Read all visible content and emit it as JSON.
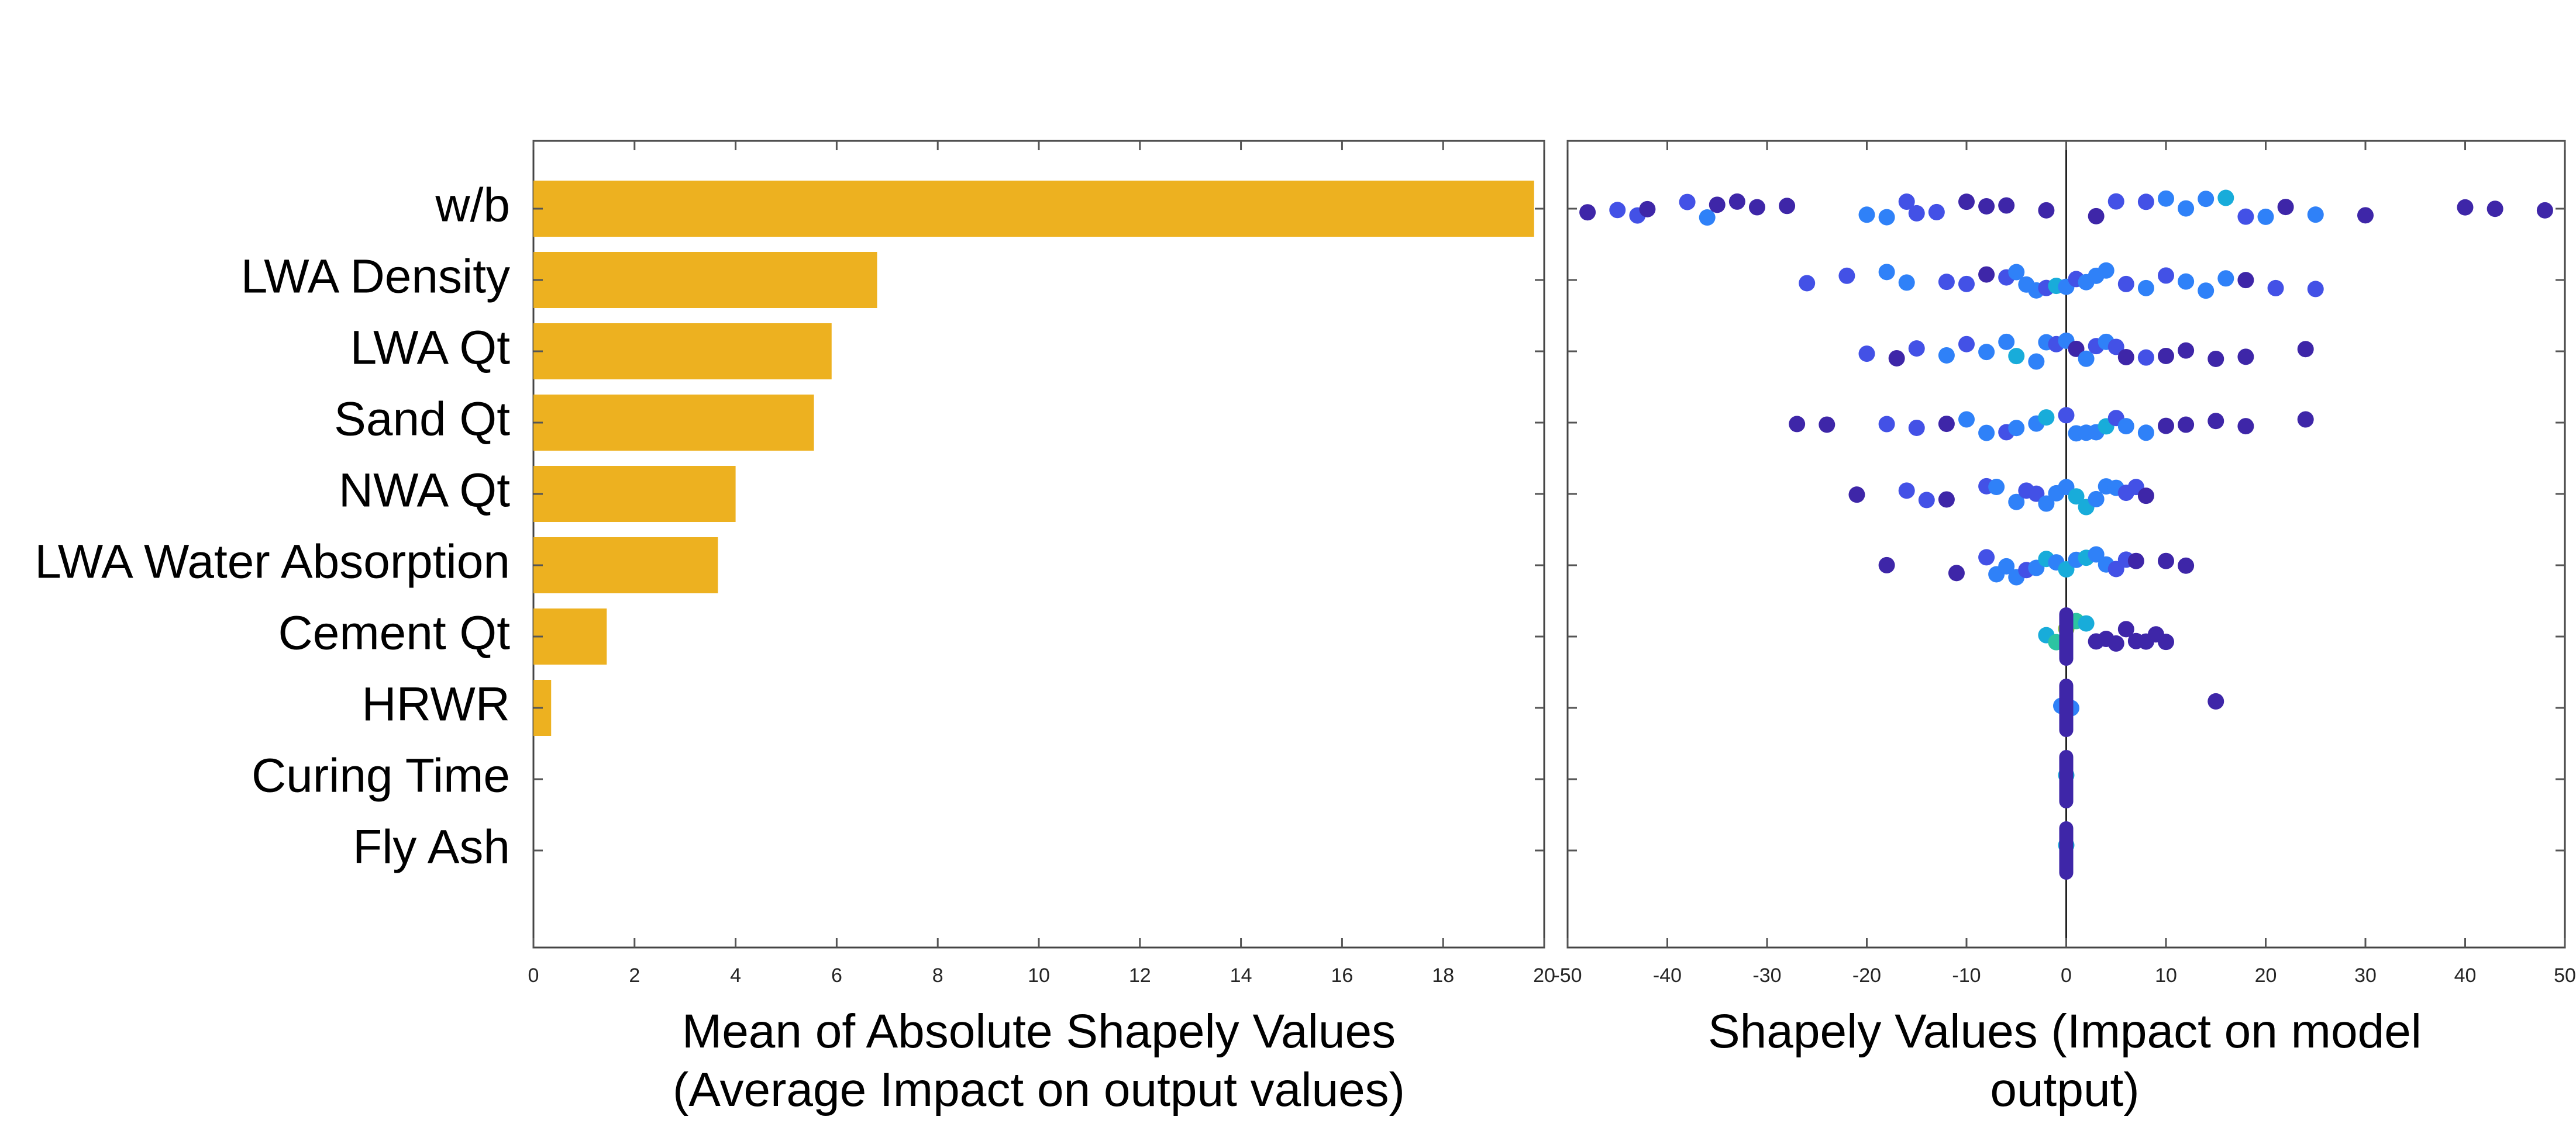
{
  "chart_data": [
    {
      "type": "bar",
      "orientation": "horizontal",
      "categories": [
        "w/b",
        "LWA Density",
        "LWA Qt",
        "Sand Qt",
        "NWA Qt",
        "LWA Water Absorption",
        "Cement Qt",
        "HRWR",
        "Curing Time",
        "Fly Ash"
      ],
      "values": [
        19.8,
        6.8,
        5.9,
        5.55,
        4.0,
        3.65,
        1.45,
        0.35,
        0,
        0
      ],
      "xlabel_lines": [
        "Mean of Absolute Shapely Values",
        "(Average Impact on output values)"
      ],
      "xlim": [
        0,
        20
      ],
      "xticks": [
        0,
        2,
        4,
        6,
        8,
        10,
        12,
        14,
        16,
        18,
        20
      ],
      "xtick_labels": [
        "0",
        "2",
        "4",
        "6",
        "8",
        "10",
        "12",
        "14",
        "16",
        "18",
        "20"
      ],
      "bar_color": "#EDB120",
      "grid": false
    },
    {
      "type": "scatter",
      "subtype": "beeswarm",
      "categories": [
        "w/b",
        "LWA Density",
        "LWA Qt",
        "Sand Qt",
        "NWA Qt",
        "LWA Water Absorption",
        "Cement Qt",
        "HRWR",
        "Curing Time",
        "Fly Ash"
      ],
      "xlabel_lines": [
        "Shapely Values (Impact on model",
        "output)"
      ],
      "xlim": [
        -50,
        50
      ],
      "xticks": [
        -50,
        -40,
        -30,
        -20,
        -10,
        0,
        10,
        20,
        30,
        40,
        50
      ],
      "xtick_labels": [
        "-50",
        "-40",
        "-30",
        "-20",
        "-10",
        "0",
        "10",
        "20",
        "30",
        "40",
        "50"
      ],
      "zero_line": true,
      "grid": false,
      "colormap": [
        "#3E26A8",
        "#4351E6",
        "#2F81F8",
        "#18ACDA",
        "#2CC4A2",
        "#8CC83E",
        "#D3BA2B",
        "#FCBE3C",
        "#F9FB15"
      ],
      "series": [
        {
          "category": "w/b",
          "points": [
            [
              -48,
              0.05
            ],
            [
              -45,
              0.1
            ],
            [
              -43,
              0.1
            ],
            [
              -42,
              0
            ],
            [
              -38,
              0.1
            ],
            [
              -36,
              0.25
            ],
            [
              -35,
              0.05
            ],
            [
              -33,
              0.05
            ],
            [
              -31,
              0.05
            ],
            [
              -28,
              0
            ],
            [
              -20,
              0.2
            ],
            [
              -18,
              0.25
            ],
            [
              -16,
              0.1
            ],
            [
              -15,
              0.15
            ],
            [
              -13,
              0.1
            ],
            [
              -10,
              0.05
            ],
            [
              -8,
              0
            ],
            [
              -6,
              0.05
            ],
            [
              -2,
              0.05
            ],
            [
              3,
              0.05
            ],
            [
              5,
              0.1
            ],
            [
              8,
              0.15
            ],
            [
              10,
              0.3
            ],
            [
              12,
              0.2
            ],
            [
              14,
              0.3
            ],
            [
              16,
              0.35
            ],
            [
              18,
              0.15
            ],
            [
              20,
              0.2
            ],
            [
              22,
              0.05
            ],
            [
              25,
              0.2
            ],
            [
              30,
              0.05
            ],
            [
              40,
              0.05
            ],
            [
              43,
              0.05
            ],
            [
              48,
              0
            ]
          ]
        },
        {
          "category": "LWA Density",
          "points": [
            [
              -26,
              0.1
            ],
            [
              -22,
              0.1
            ],
            [
              -18,
              0.2
            ],
            [
              -16,
              0.25
            ],
            [
              -12,
              0.1
            ],
            [
              -10,
              0.15
            ],
            [
              -8,
              0.05
            ],
            [
              -6,
              0.15
            ],
            [
              -5,
              0.3
            ],
            [
              -4,
              0.2
            ],
            [
              -3,
              0.25
            ],
            [
              -2,
              0.1
            ],
            [
              -1,
              0.35
            ],
            [
              0,
              0.25
            ],
            [
              1,
              0.15
            ],
            [
              2,
              0.3
            ],
            [
              3,
              0.2
            ],
            [
              4,
              0.25
            ],
            [
              6,
              0.1
            ],
            [
              8,
              0.2
            ],
            [
              10,
              0.15
            ],
            [
              12,
              0.3
            ],
            [
              14,
              0.25
            ],
            [
              16,
              0.2
            ],
            [
              18,
              0.05
            ],
            [
              21,
              0.1
            ],
            [
              25,
              0.15
            ]
          ]
        },
        {
          "category": "LWA Qt",
          "points": [
            [
              -20,
              0.1
            ],
            [
              -17,
              0.05
            ],
            [
              -15,
              0.15
            ],
            [
              -12,
              0.2
            ],
            [
              -10,
              0.1
            ],
            [
              -8,
              0.3
            ],
            [
              -6,
              0.2
            ],
            [
              -5,
              0.35
            ],
            [
              -3,
              0.25
            ],
            [
              -2,
              0.3
            ],
            [
              -1,
              0.15
            ],
            [
              0,
              0.25
            ],
            [
              1,
              0.05
            ],
            [
              2,
              0.2
            ],
            [
              3,
              0.1
            ],
            [
              4,
              0.3
            ],
            [
              5,
              0.15
            ],
            [
              6,
              0.05
            ],
            [
              8,
              0.1
            ],
            [
              10,
              0.05
            ],
            [
              12,
              0.05
            ],
            [
              15,
              0.05
            ],
            [
              18,
              0.05
            ],
            [
              24,
              0.05
            ]
          ]
        },
        {
          "category": "Sand Qt",
          "points": [
            [
              -27,
              0.05
            ],
            [
              -24,
              0.05
            ],
            [
              -18,
              0.1
            ],
            [
              -15,
              0.15
            ],
            [
              -12,
              0.05
            ],
            [
              -10,
              0.2
            ],
            [
              -8,
              0.25
            ],
            [
              -6,
              0.15
            ],
            [
              -5,
              0.3
            ],
            [
              -3,
              0.2
            ],
            [
              -2,
              0.35
            ],
            [
              0,
              0.15
            ],
            [
              1,
              0.25
            ],
            [
              2,
              0.3
            ],
            [
              3,
              0.2
            ],
            [
              4,
              0.35
            ],
            [
              5,
              0.1
            ],
            [
              6,
              0.25
            ],
            [
              8,
              0.2
            ],
            [
              10,
              0.05
            ],
            [
              12,
              0.05
            ],
            [
              15,
              0.05
            ],
            [
              18,
              0.05
            ],
            [
              24,
              0.05
            ]
          ]
        },
        {
          "category": "NWA Qt",
          "points": [
            [
              -21,
              0.05
            ],
            [
              -16,
              0.1
            ],
            [
              -14,
              0.15
            ],
            [
              -12,
              0.05
            ],
            [
              -8,
              0.1
            ],
            [
              -7,
              0.2
            ],
            [
              -5,
              0.25
            ],
            [
              -4,
              0.1
            ],
            [
              -3,
              0.15
            ],
            [
              -2,
              0.2
            ],
            [
              -1,
              0.3
            ],
            [
              0,
              0.25
            ],
            [
              1,
              0.35
            ],
            [
              2,
              0.4
            ],
            [
              3,
              0.3
            ],
            [
              4,
              0.25
            ],
            [
              5,
              0.2
            ],
            [
              6,
              0.15
            ],
            [
              7,
              0.1
            ],
            [
              8,
              0.05
            ]
          ]
        },
        {
          "category": "LWA Water Absorption",
          "points": [
            [
              -18,
              0.05
            ],
            [
              -11,
              0.05
            ],
            [
              -8,
              0.1
            ],
            [
              -7,
              0.2
            ],
            [
              -6,
              0.25
            ],
            [
              -5,
              0.3
            ],
            [
              -4,
              0.15
            ],
            [
              -3,
              0.2
            ],
            [
              -2,
              0.35
            ],
            [
              -1,
              0.25
            ],
            [
              0,
              0.4
            ],
            [
              1,
              0.3
            ],
            [
              2,
              0.35
            ],
            [
              3,
              0.25
            ],
            [
              4,
              0.2
            ],
            [
              5,
              0.15
            ],
            [
              6,
              0.1
            ],
            [
              7,
              0.05
            ],
            [
              10,
              0.05
            ],
            [
              12,
              0.05
            ]
          ]
        },
        {
          "category": "Cement Qt",
          "points": [
            [
              -2,
              0.4
            ],
            [
              -1,
              0.5
            ],
            [
              0,
              0.6
            ],
            [
              1,
              0.5
            ],
            [
              2,
              0.4
            ],
            [
              3,
              0.05
            ],
            [
              4,
              0.05
            ],
            [
              5,
              0.05
            ],
            [
              6,
              0.05
            ],
            [
              7,
              0.05
            ],
            [
              8,
              0.05
            ],
            [
              9,
              0.05
            ],
            [
              10,
              0.05
            ]
          ]
        },
        {
          "category": "HRWR",
          "points": [
            [
              -0.5,
              0.2
            ],
            [
              0,
              0.3
            ],
            [
              0.5,
              0.2
            ],
            [
              15,
              0.05
            ]
          ]
        },
        {
          "category": "Curing Time",
          "points": [
            [
              0,
              0.4
            ]
          ]
        },
        {
          "category": "Fly Ash",
          "points": [
            [
              0,
              0.4
            ]
          ]
        }
      ]
    }
  ]
}
